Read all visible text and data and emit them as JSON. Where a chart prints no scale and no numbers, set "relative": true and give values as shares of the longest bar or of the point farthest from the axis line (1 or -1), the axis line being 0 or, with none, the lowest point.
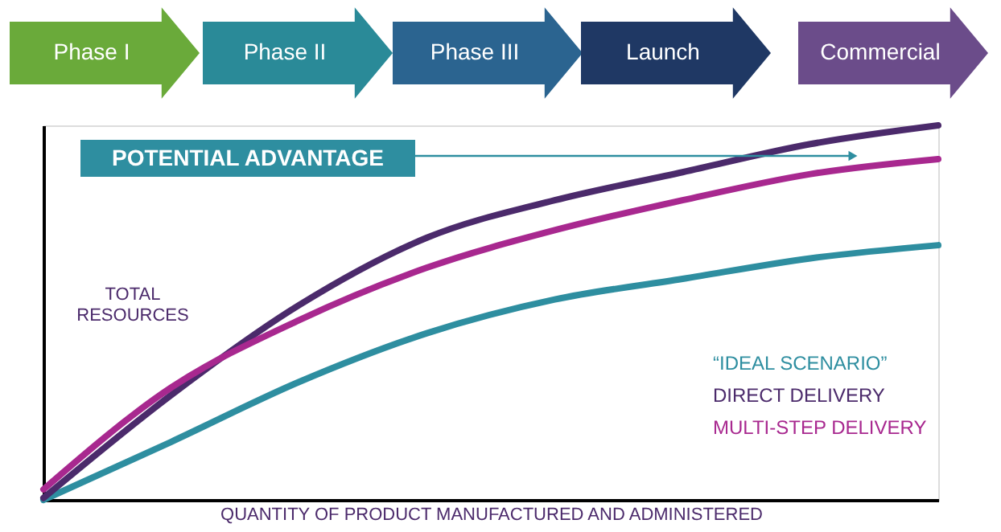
{
  "chart_data": {
    "type": "line",
    "relative": true,
    "xlabel": "QUANTITY OF PRODUCT MANUFACTURED AND ADMINISTERED",
    "ylabel": "TOTAL RESOURCES",
    "annotations": [
      "Phase I",
      "Phase II",
      "Phase III",
      "Launch",
      "Commercial",
      "POTENTIAL ADVANTAGE"
    ],
    "categories": [
      null,
      null,
      null,
      null,
      null,
      null,
      null,
      null
    ],
    "series": [
      {
        "name": "“IDEAL SCENARIO”",
        "color": "#2e8ea0",
        "values": [
          0,
          0.155,
          0.315,
          0.445,
          0.535,
          0.59,
          0.645,
          0.68
        ]
      },
      {
        "name": "DIRECT DELIVERY",
        "color": "#4b2a6b",
        "values": [
          0.005,
          0.28,
          0.52,
          0.7,
          0.8,
          0.875,
          0.95,
          1.0
        ]
      },
      {
        "name": "MULTI-STEP DELIVERY",
        "color": "#a8288f",
        "values": [
          0.028,
          0.3,
          0.48,
          0.62,
          0.72,
          0.8,
          0.87,
          0.91
        ]
      }
    ],
    "legend": "bottom right",
    "grid": false,
    "tick_labels": false,
    "marker": "none",
    "line_style": "solid"
  }
}
